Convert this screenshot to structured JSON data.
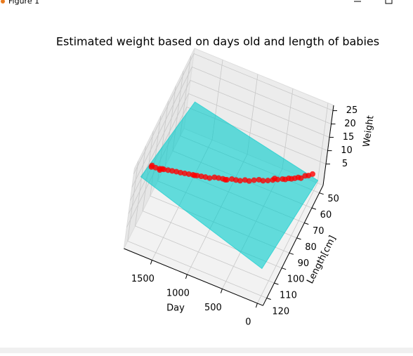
{
  "window": {
    "title": "Figure 1"
  },
  "chart_data": {
    "type": "scatter3d",
    "title": "Estimated weight based on days old and length of babies",
    "xlabel": "Day",
    "ylabel": "Length[cm]",
    "zlabel": "Weight",
    "xlim": [
      -80,
      1900
    ],
    "ylim": [
      45,
      125
    ],
    "zlim": [
      -3,
      27
    ],
    "xticks": [
      0,
      500,
      1000,
      1500
    ],
    "yticks": [
      50,
      60,
      70,
      80,
      90,
      100,
      110,
      120
    ],
    "zticks": [
      5,
      10,
      15,
      20,
      25
    ],
    "grid": true,
    "surface": {
      "color": "#00cccc",
      "x": [
        0,
        1800,
        1800,
        0
      ],
      "y": [
        45,
        45,
        125,
        125
      ],
      "z": [
        -2,
        8,
        25,
        10
      ]
    },
    "series": [
      {
        "color": "#ff0000",
        "x": [
          30,
          60,
          90,
          120,
          150,
          180,
          210,
          240,
          270,
          300,
          350,
          400,
          450,
          500,
          550,
          600,
          650,
          700,
          750,
          800,
          850,
          900,
          950,
          1000,
          1050,
          1100,
          1150,
          1200,
          1250,
          1300,
          1350,
          1400,
          1450,
          1500,
          1550,
          1600,
          1650,
          1700,
          1750,
          1800,
          1780,
          1720,
          1650,
          900,
          400,
          1300
        ],
        "y": [
          52,
          55,
          57,
          60,
          61,
          63,
          65,
          66,
          68,
          69,
          71,
          73,
          75,
          77,
          78,
          80,
          82,
          83,
          85,
          86,
          87,
          89,
          90,
          91,
          92,
          94,
          95,
          96,
          97,
          98,
          99,
          100,
          101,
          102,
          103,
          104,
          105,
          106,
          107,
          108,
          110,
          103,
          108,
          92,
          70,
          95
        ],
        "z": [
          4,
          4.8,
          5.5,
          6,
          6.5,
          7,
          7.6,
          8,
          8.4,
          8.8,
          9.2,
          9.6,
          10,
          10.5,
          10.9,
          11.3,
          11.6,
          12,
          12.3,
          12.6,
          13,
          13.3,
          13.7,
          14,
          14.3,
          14.6,
          15,
          15.3,
          15.6,
          15.9,
          16.2,
          16.5,
          16.8,
          17.2,
          17.5,
          17.8,
          18.1,
          18.4,
          18.8,
          19.1,
          21,
          16,
          20,
          15,
          8.5,
          14
        ]
      }
    ]
  }
}
